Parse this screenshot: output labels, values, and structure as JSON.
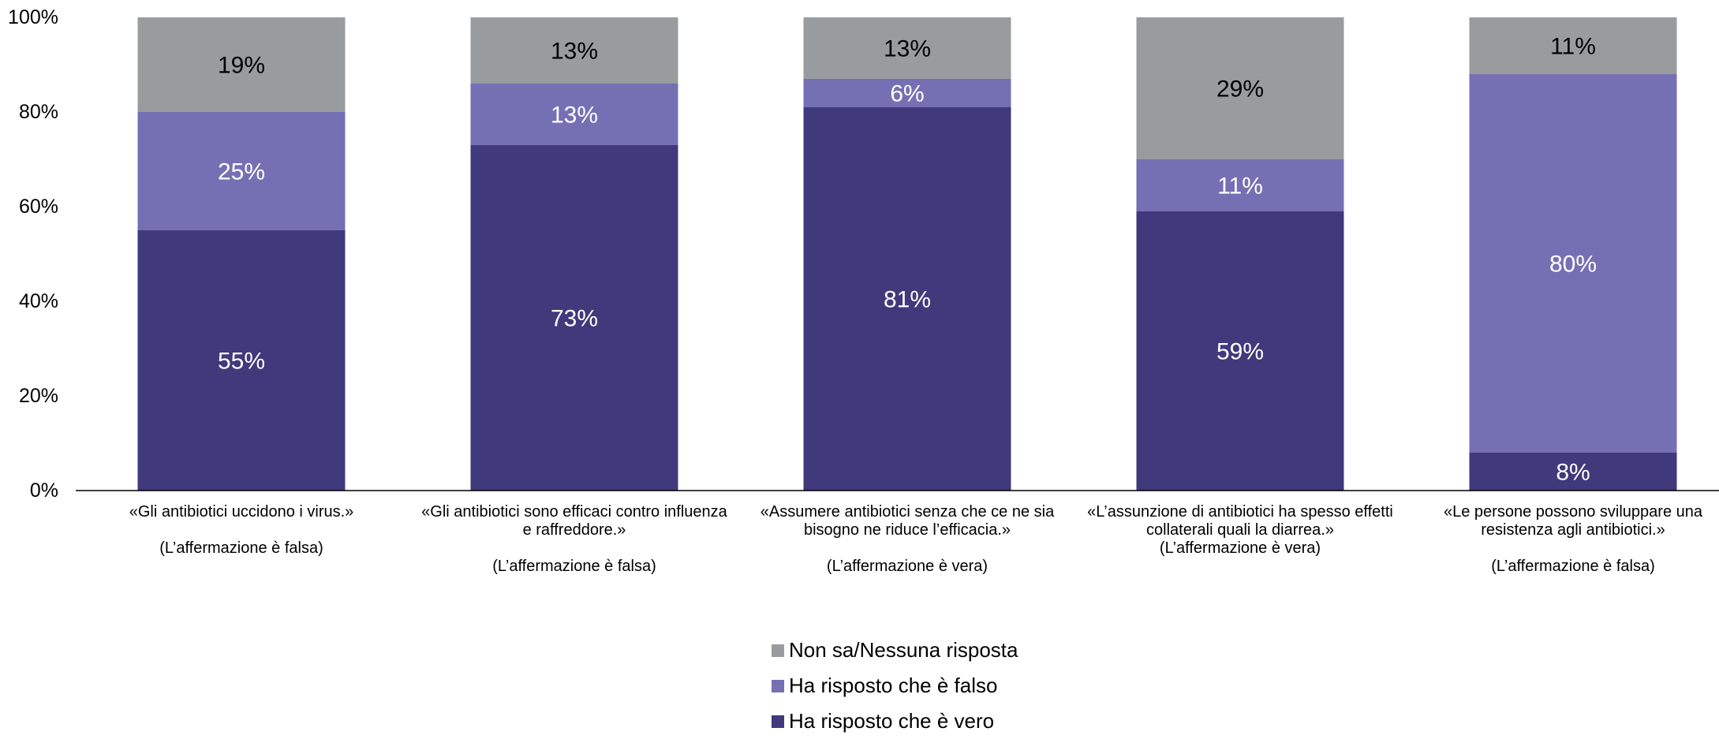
{
  "chart_data": {
    "type": "bar",
    "stacked": true,
    "percent": true,
    "categories": [
      {
        "lines": [
          "«Gli antibiotici uccidono i virus.»",
          "",
          "(L’affermazione è falsa)"
        ]
      },
      {
        "lines": [
          "«Gli antibiotici sono efficaci contro influenza",
          "e raffreddore.»",
          "",
          "(L’affermazione è falsa)"
        ]
      },
      {
        "lines": [
          "«Assumere antibiotici senza che ce ne sia",
          "bisogno ne riduce l’efficacia.»",
          "",
          "(L’affermazione è vera)"
        ]
      },
      {
        "lines": [
          "«L’assunzione di antibiotici ha spesso effetti",
          "collaterali quali la diarrea.»",
          "(L’affermazione è vera)"
        ]
      },
      {
        "lines": [
          "«Le persone possono sviluppare una",
          "resistenza agli antibiotici.»",
          "",
          "(L’affermazione è falsa)"
        ]
      }
    ],
    "series": [
      {
        "name": "Ha risposto che è vero",
        "color": "#40397b",
        "label_color": "#ffffff",
        "values": [
          55,
          73,
          81,
          59,
          8
        ]
      },
      {
        "name": "Ha risposto che è falso",
        "color": "#7570b3",
        "label_color": "#ffffff",
        "values": [
          25,
          13,
          6,
          11,
          80
        ]
      },
      {
        "name": "Non sa/Nessuna risposta",
        "color": "#999c9f",
        "label_color": "#000000",
        "values": [
          19,
          13,
          13,
          29,
          11
        ]
      }
    ],
    "yticks": [
      "0%",
      "20%",
      "40%",
      "60%",
      "80%",
      "100%"
    ],
    "ylim": [
      0,
      100
    ],
    "legend_position": "bottom",
    "grid": false
  },
  "legend": {
    "items": [
      {
        "label": "Non sa/Nessuna risposta",
        "color": "#999c9f"
      },
      {
        "label": "Ha risposto che è falso",
        "color": "#7570b3"
      },
      {
        "label": "Ha risposto che è vero",
        "color": "#40397b"
      }
    ]
  }
}
